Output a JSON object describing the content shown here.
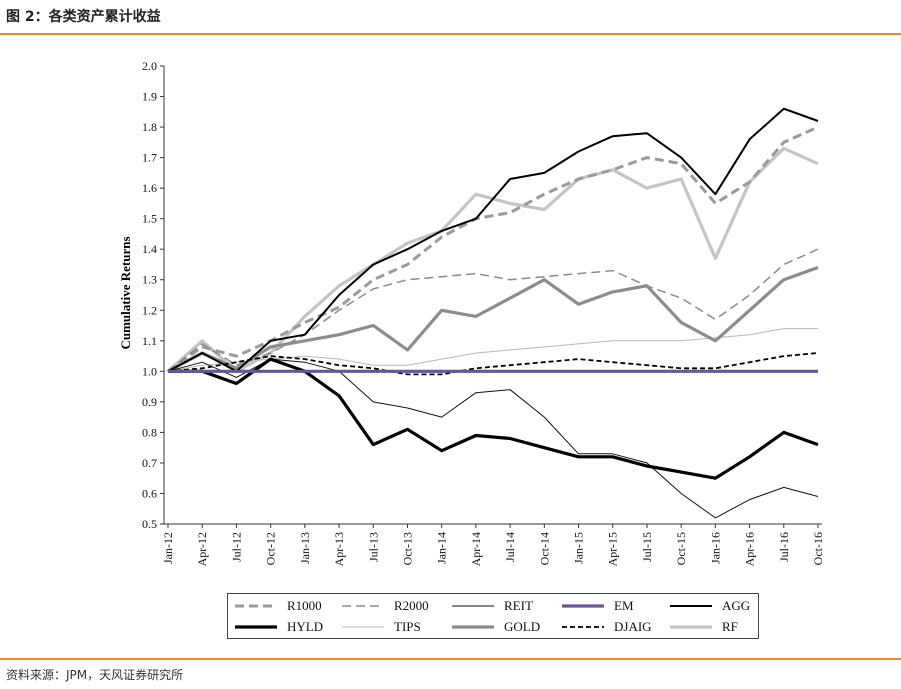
{
  "header": {
    "title": "图 2：各类资产累计收益"
  },
  "footer": {
    "source": "资料来源：JPM，天风证券研究所"
  },
  "chart_data": {
    "type": "line",
    "title": "图 2：各类资产累计收益",
    "xlabel": "",
    "ylabel": "Cumulative Returns",
    "ylim": [
      0.5,
      2.0
    ],
    "yticks": [
      "2.0",
      "1.9",
      "1.8",
      "1.7",
      "1.6",
      "1.5",
      "1.4",
      "1.3",
      "1.2",
      "1.1",
      "1.0",
      "0.9",
      "0.8",
      "0.7",
      "0.6",
      "0.5"
    ],
    "x_ticks": [
      "Jan-12",
      "Apr-12",
      "Jul-12",
      "Oct-12",
      "Jan-13",
      "Apr-13",
      "Jul-13",
      "Oct-13",
      "Jan-14",
      "Apr-14",
      "Jul-14",
      "Oct-14",
      "Jan-15",
      "Apr-15",
      "Jul-15",
      "Oct-15",
      "Jan-16",
      "Apr-16",
      "Jul-16",
      "Oct-16"
    ],
    "legend_position": "bottom",
    "series": [
      {
        "name": "R1000",
        "color": "#9a9a9a",
        "dash": "dash-thick",
        "values": [
          1.0,
          1.08,
          1.05,
          1.1,
          1.16,
          1.21,
          1.3,
          1.35,
          1.44,
          1.5,
          1.52,
          1.58,
          1.63,
          1.66,
          1.7,
          1.68,
          1.55,
          1.62,
          1.75,
          1.8
        ]
      },
      {
        "name": "R2000",
        "color": "#8a8a8a",
        "dash": "dash-thin",
        "values": [
          1.0,
          1.09,
          1.02,
          1.06,
          1.12,
          1.2,
          1.27,
          1.3,
          1.31,
          1.32,
          1.3,
          1.31,
          1.32,
          1.33,
          1.28,
          1.24,
          1.17,
          1.25,
          1.35,
          1.4
        ]
      },
      {
        "name": "REIT",
        "color": "#111111",
        "dash": "solid-thin",
        "values": [
          1.0,
          1.03,
          0.98,
          1.04,
          1.03,
          1.0,
          0.9,
          0.88,
          0.85,
          0.93,
          0.94,
          0.85,
          0.73,
          0.73,
          0.7,
          0.6,
          0.52,
          0.58,
          0.62,
          0.59
        ]
      },
      {
        "name": "EM",
        "color": "#6a5597",
        "dash": "solid-bold",
        "values": [
          1.0,
          1.0,
          1.0,
          1.0,
          1.0,
          1.0,
          1.0,
          1.0,
          1.0,
          1.0,
          1.0,
          1.0,
          1.0,
          1.0,
          1.0,
          1.0,
          1.0,
          1.0,
          1.0,
          1.0
        ]
      },
      {
        "name": "AGG",
        "color": "#000000",
        "dash": "solid-med",
        "values": [
          1.0,
          1.06,
          1.0,
          1.1,
          1.12,
          1.25,
          1.35,
          1.4,
          1.46,
          1.5,
          1.63,
          1.65,
          1.72,
          1.77,
          1.78,
          1.7,
          1.58,
          1.76,
          1.86,
          1.82
        ]
      },
      {
        "name": "HYLD",
        "color": "#000000",
        "dash": "solid-thick",
        "values": [
          1.0,
          1.0,
          0.96,
          1.04,
          1.0,
          0.92,
          0.76,
          0.81,
          0.74,
          0.79,
          0.78,
          0.75,
          0.72,
          0.72,
          0.69,
          0.67,
          0.65,
          0.72,
          0.8,
          0.76
        ]
      },
      {
        "name": "TIPS",
        "color": "#b8b8b8",
        "dash": "solid-thin",
        "values": [
          1.0,
          1.02,
          1.03,
          1.04,
          1.05,
          1.04,
          1.02,
          1.02,
          1.04,
          1.06,
          1.07,
          1.08,
          1.09,
          1.1,
          1.1,
          1.1,
          1.11,
          1.12,
          1.14,
          1.14
        ]
      },
      {
        "name": "GOLD",
        "color": "#8c8c8c",
        "dash": "solid-thick",
        "values": [
          1.0,
          1.06,
          1.01,
          1.08,
          1.1,
          1.12,
          1.15,
          1.07,
          1.2,
          1.18,
          1.24,
          1.3,
          1.22,
          1.26,
          1.28,
          1.16,
          1.1,
          1.2,
          1.3,
          1.34
        ]
      },
      {
        "name": "DJAIG",
        "color": "#000000",
        "dash": "dash-black",
        "values": [
          1.0,
          1.01,
          1.03,
          1.05,
          1.04,
          1.02,
          1.01,
          0.99,
          0.99,
          1.01,
          1.02,
          1.03,
          1.04,
          1.03,
          1.02,
          1.01,
          1.01,
          1.03,
          1.05,
          1.06
        ]
      },
      {
        "name": "RF",
        "color": "#c4c4c4",
        "dash": "solid-thick",
        "values": [
          1.0,
          1.1,
          1.0,
          1.06,
          1.18,
          1.28,
          1.35,
          1.42,
          1.46,
          1.58,
          1.55,
          1.53,
          1.63,
          1.66,
          1.6,
          1.63,
          1.37,
          1.62,
          1.73,
          1.68
        ]
      }
    ]
  }
}
